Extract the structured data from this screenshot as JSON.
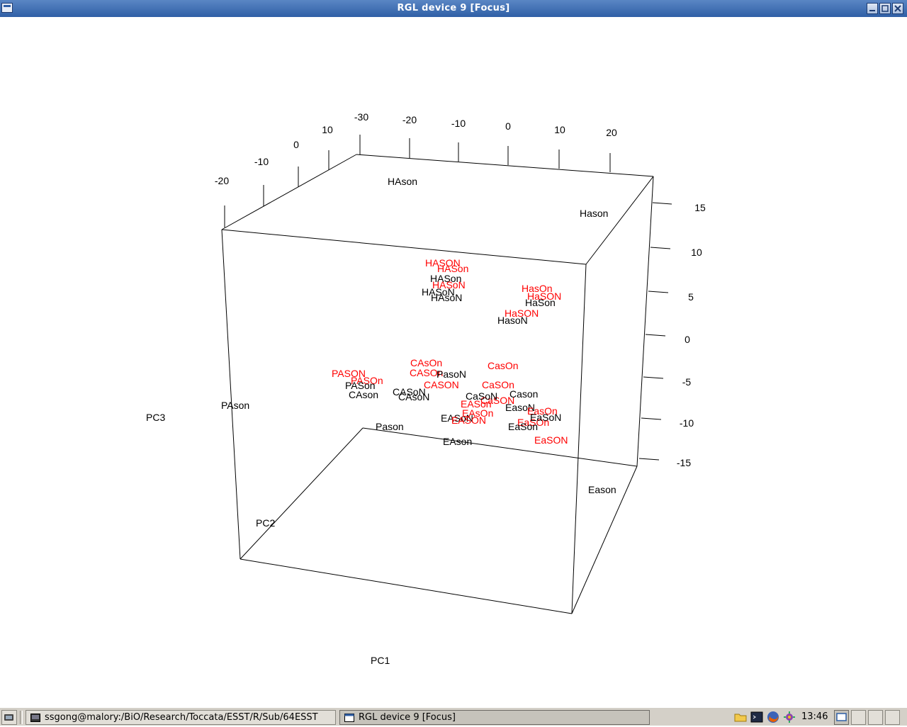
{
  "window": {
    "title": "RGL device 9 [Focus]",
    "buttons": [
      "minimize",
      "maximize",
      "close"
    ]
  },
  "plot": {
    "axes": {
      "pc1_label": "PC1",
      "pc2_label": "PC2",
      "pc3_label": "PC3",
      "pc1_ticks": [
        "-30",
        "-20",
        "-10",
        "0",
        "10",
        "20"
      ],
      "pc2_ticks": [
        "-20",
        "-10",
        "0",
        "10"
      ],
      "pc3_ticks": [
        "15",
        "10",
        "5",
        "0",
        "-5",
        "-10",
        "-15"
      ]
    },
    "colors": {
      "black_series": "#000000",
      "red_series": "#ff0000"
    },
    "labels": [
      {
        "text": "HAson",
        "color": "black"
      },
      {
        "text": "Hason",
        "color": "black"
      },
      {
        "text": "HASON",
        "color": "red"
      },
      {
        "text": "HASon",
        "color": "red"
      },
      {
        "text": "HASon",
        "color": "black"
      },
      {
        "text": "HASoN",
        "color": "red"
      },
      {
        "text": "HASoN",
        "color": "black"
      },
      {
        "text": "HAsoN",
        "color": "black"
      },
      {
        "text": "HasOn",
        "color": "red"
      },
      {
        "text": "HaSON",
        "color": "red"
      },
      {
        "text": "HaSon",
        "color": "black"
      },
      {
        "text": "HaSON",
        "color": "red"
      },
      {
        "text": "HasoN",
        "color": "black"
      },
      {
        "text": "PASON",
        "color": "red"
      },
      {
        "text": "PASOn",
        "color": "red"
      },
      {
        "text": "PASon",
        "color": "black"
      },
      {
        "text": "CAson",
        "color": "black"
      },
      {
        "text": "CASoN",
        "color": "black"
      },
      {
        "text": "CAsoN",
        "color": "black"
      },
      {
        "text": "CAsOn",
        "color": "red"
      },
      {
        "text": "CASOn",
        "color": "red"
      },
      {
        "text": "CASON",
        "color": "red"
      },
      {
        "text": "PasoN",
        "color": "black"
      },
      {
        "text": "CasOn",
        "color": "red"
      },
      {
        "text": "CaSOn",
        "color": "red"
      },
      {
        "text": "CaSON",
        "color": "red"
      },
      {
        "text": "CaSoN",
        "color": "black"
      },
      {
        "text": "Cason",
        "color": "black"
      },
      {
        "text": "EasoN",
        "color": "black"
      },
      {
        "text": "EASoN",
        "color": "black"
      },
      {
        "text": "EASon",
        "color": "red"
      },
      {
        "text": "EASON",
        "color": "red"
      },
      {
        "text": "EAsOn",
        "color": "red"
      },
      {
        "text": "EaSOn",
        "color": "red"
      },
      {
        "text": "EaSon",
        "color": "black"
      },
      {
        "text": "EasOn",
        "color": "red"
      },
      {
        "text": "EaSoN",
        "color": "black"
      },
      {
        "text": "EaSON",
        "color": "red"
      },
      {
        "text": "Pason",
        "color": "black"
      },
      {
        "text": "EAson",
        "color": "black"
      },
      {
        "text": "PAson",
        "color": "black"
      },
      {
        "text": "Eason",
        "color": "black"
      }
    ]
  },
  "taskbar": {
    "tasks": [
      {
        "label": "ssgong@malory:/BiO/Research/Toccata/ESST/R/Sub/64ESST",
        "active": false
      },
      {
        "label": "RGL device 9 [Focus]",
        "active": true
      }
    ],
    "tray_icons": [
      "folder-icon",
      "terminal-icon",
      "firefox-icon",
      "settings-icon"
    ],
    "clock": "13:46"
  }
}
